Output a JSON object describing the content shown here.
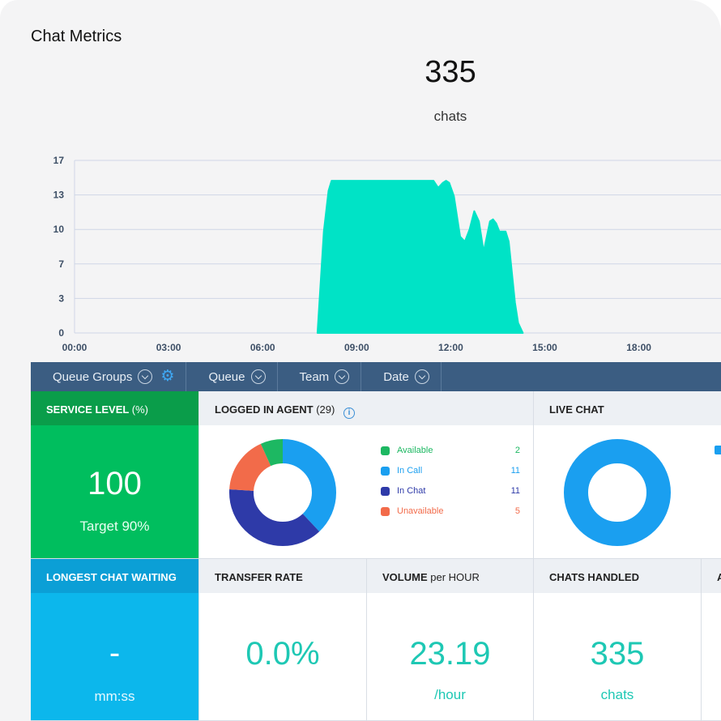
{
  "page": {
    "title": "Chat Metrics"
  },
  "summary": {
    "total": "335",
    "unit": "chats"
  },
  "chart_data": {
    "type": "area",
    "x_ticks": [
      "00:00",
      "03:00",
      "06:00",
      "09:00",
      "12:00",
      "15:00",
      "18:00"
    ],
    "y_ticks": [
      "0",
      "3",
      "7",
      "10",
      "13",
      "17"
    ],
    "ylim": [
      0,
      17
    ],
    "xlim_hours": [
      0,
      21
    ],
    "grid": true,
    "color": "#00e3c6",
    "series": [
      {
        "x_hours": [
          7.75,
          7.95,
          8.1,
          8.2,
          8.35,
          8.5,
          8.7,
          9.0,
          10.0,
          11.0,
          11.45,
          11.6,
          11.75,
          11.85,
          11.95,
          12.1,
          12.3,
          12.45,
          12.6,
          12.75,
          12.9,
          13.0,
          13.05,
          13.15,
          13.25,
          13.35,
          13.45,
          13.55,
          13.65,
          13.75,
          13.85,
          14.05,
          14.15,
          14.3
        ],
        "y": [
          0,
          10,
          14,
          15,
          15,
          15,
          15,
          15,
          15,
          15,
          15,
          14.3,
          14.8,
          15,
          14.8,
          13.5,
          9.5,
          9,
          10.2,
          12,
          11,
          9,
          8,
          9.5,
          11,
          11.2,
          10.8,
          10,
          10,
          10,
          9,
          3,
          1,
          0
        ]
      }
    ]
  },
  "filters": [
    {
      "label": "Queue Groups"
    },
    {
      "label": "Queue"
    },
    {
      "label": "Team"
    },
    {
      "label": "Date"
    }
  ],
  "service_level": {
    "title": "SERVICE LEVEL",
    "unit": "(%)",
    "value": "100",
    "target": "Target 90%"
  },
  "logged_in_agent": {
    "title": "LOGGED IN AGENT",
    "count": "(29)",
    "legend": [
      {
        "name": "Available",
        "value": 2,
        "color": "#1db862"
      },
      {
        "name": "In Call",
        "value": 11,
        "color": "#1a9ff0"
      },
      {
        "name": "In Chat",
        "value": 11,
        "color": "#2e3aa8"
      },
      {
        "name": "Unavailable",
        "value": 5,
        "color": "#f26b4a"
      }
    ]
  },
  "live_chat": {
    "title": "LIVE CHAT",
    "color": "#1a9ff0"
  },
  "longest_chat_waiting": {
    "title": "LONGEST CHAT WAITING",
    "value": "-",
    "unit": "mm:ss"
  },
  "transfer_rate": {
    "title": "TRANSFER RATE",
    "value": "0.0%"
  },
  "volume": {
    "title": "VOLUME",
    "subtitle": "per HOUR",
    "value": "23.19",
    "unit": "/hour"
  },
  "chats_handled": {
    "title": "CHATS HANDLED",
    "value": "335",
    "unit": "chats"
  },
  "next_panel": {
    "title": "A"
  },
  "colors": {
    "accent_teal": "#1ec8b4",
    "header_bar": "#3b5d82"
  }
}
